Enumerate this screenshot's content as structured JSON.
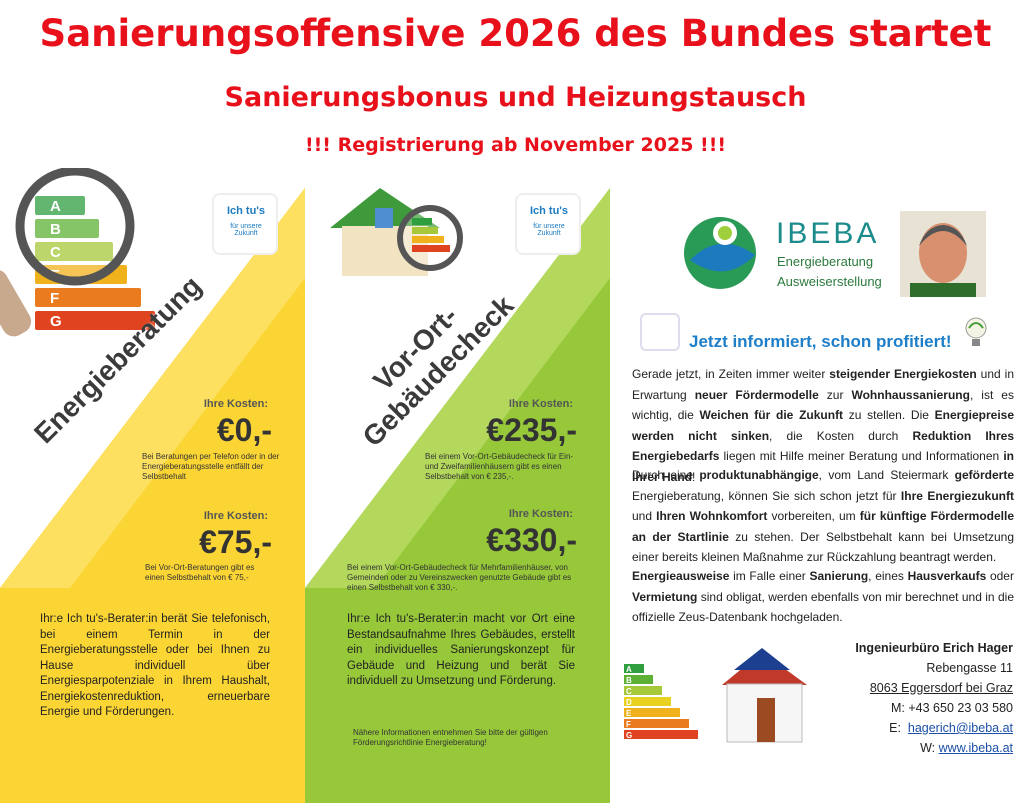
{
  "header": {
    "title": "Sanierungsoffensive 2026 des Bundes startet",
    "subtitle": "Sanierungsbonus und Heizungstausch",
    "notice": "!!! Registrierung ab November 2025 !!!"
  },
  "energy_scale": {
    "letters": [
      "A",
      "B",
      "C",
      "E",
      "F",
      "G"
    ],
    "colors": [
      "#2e9e3f",
      "#5cb135",
      "#a6c83a",
      "#f0b21c",
      "#ea7b1f",
      "#e0431f"
    ]
  },
  "panels": [
    {
      "badge": {
        "line1": "Ich tu's",
        "line2": "für unsere Zukunft"
      },
      "heading": [
        "Energieberatung"
      ],
      "costs": [
        {
          "label": "Ihre Kosten:",
          "price": "€0,-",
          "note": "Bei Beratungen per Telefon oder in der Energieberatungsstelle entfällt der Selbstbehalt"
        },
        {
          "label": "Ihre Kosten:",
          "price": "€75,-",
          "note": "Bei Vor-Ort-Beratungen gibt es einen Selbstbehalt von € 75,-"
        }
      ],
      "body": "Ihr:e Ich tu's-Berater:in berät Sie telefonisch, bei einem Termin in der Energieberatungsstelle oder bei Ihnen zu Hause individuell über Energiesparpotenziale in Ihrem Haushalt, Energiekostenreduktion, erneuerbare Energie und Förderungen."
    },
    {
      "badge": {
        "line1": "Ich tu's",
        "line2": "für unsere Zukunft"
      },
      "heading": [
        "Vor-Ort-",
        "Gebäudecheck"
      ],
      "costs": [
        {
          "label": "Ihre Kosten:",
          "price": "€235,-",
          "note": "Bei einem Vor-Ort-Gebäudecheck für Ein- und Zweifamilienhäusern gibt es einen Selbstbehalt von € 235,-."
        },
        {
          "label": "Ihre Kosten:",
          "price": "€330,-",
          "note": "Bei einem Vor-Ort-Gebäudecheck für Mehrfamilienhäuser, von Gemeinden oder zu Vereinszwecken genutzte Gebäude gibt es einen Selbstbehalt von € 330,-."
        }
      ],
      "body": "Ihr:e Ich tu's-Berater:in macht vor Ort eine Bestandsaufnahme Ihres Gebäudes, erstellt ein individuelles Sanierungskonzept für Gebäude und Heizung und berät Sie individuell zu Umsetzung und Förderung.",
      "footnote": "Nähere Informationen entnehmen Sie bitte der gültigen Förderungsrichtlinie Energieberatung!"
    }
  ],
  "company": {
    "name": "IBEBA",
    "tagline1": "Energieberatung",
    "tagline2": "Ausweiserstellung"
  },
  "headline": "Jetzt informiert, schon profitiert!",
  "paragraphs": [
    [
      {
        "text": "Gerade jetzt, in Zeiten immer weiter ",
        "bold": false
      },
      {
        "text": "steigender Energiekosten",
        "bold": true
      },
      {
        "text": " und in Erwartung ",
        "bold": false
      },
      {
        "text": "neuer Fördermodelle",
        "bold": true
      },
      {
        "text": " zur ",
        "bold": false
      },
      {
        "text": "Wohnhaussanierung",
        "bold": true
      },
      {
        "text": ", ist es wichtig, die ",
        "bold": false
      },
      {
        "text": "Weichen für die Zukunft",
        "bold": true
      },
      {
        "text": " zu stellen. Die ",
        "bold": false
      },
      {
        "text": "Energiepreise werden nicht sinken",
        "bold": true
      },
      {
        "text": ", die Kosten durch ",
        "bold": false
      },
      {
        "text": "Reduktion Ihres Energiebedarfs",
        "bold": true
      },
      {
        "text": " liegen mit Hilfe meiner Beratung und Informationen ",
        "bold": false
      },
      {
        "text": "in Ihrer Hand",
        "bold": true
      },
      {
        "text": "!",
        "bold": false
      }
    ],
    [
      {
        "text": "Durch eine ",
        "bold": false
      },
      {
        "text": "produktunabhängige",
        "bold": true
      },
      {
        "text": ", vom Land Steiermark ",
        "bold": false
      },
      {
        "text": "geförderte",
        "bold": true
      },
      {
        "text": " Energieberatung, können Sie sich schon jetzt für ",
        "bold": false
      },
      {
        "text": "Ihre Energiezukunft",
        "bold": true
      },
      {
        "text": " und ",
        "bold": false
      },
      {
        "text": "Ihren Wohnkomfort",
        "bold": true
      },
      {
        "text": " vorbereiten, um ",
        "bold": false
      },
      {
        "text": "für künftige Fördermodelle an der Startlinie",
        "bold": true
      },
      {
        "text": " zu stehen. Der Selbstbehalt kann bei Umsetzung einer bereits kleinen Maßnahme zur Rückzahlung beantragt werden.",
        "bold": false
      }
    ],
    [
      {
        "text": "Energieausweise",
        "bold": true
      },
      {
        "text": " im Falle einer ",
        "bold": false
      },
      {
        "text": "Sanierung",
        "bold": true
      },
      {
        "text": ", eines ",
        "bold": false
      },
      {
        "text": "Hausverkaufs",
        "bold": true
      },
      {
        "text": " oder ",
        "bold": false
      },
      {
        "text": "Vermietung",
        "bold": true
      },
      {
        "text": " sind obligat, werden ebenfalls von mir berechnet und in die offizielle Zeus-Datenbank hochgeladen.",
        "bold": false
      }
    ]
  ],
  "contact": {
    "name": "Ingenieurbüro Erich Hager",
    "street": "Rebengasse 11",
    "city": "8063 Eggersdorf bei Graz",
    "phone": "M: +43 650 23 03 580",
    "email_label": "E:",
    "email": "hagerich@ibeba.at",
    "web_label": "W:",
    "web": "www.ibeba.at"
  },
  "mini_scale": {
    "letters": [
      "A",
      "B",
      "C",
      "D",
      "E",
      "F",
      "G"
    ],
    "colors": [
      "#2e9e3f",
      "#5cb135",
      "#a6c83a",
      "#e8d21f",
      "#f0b21c",
      "#ea7b1f",
      "#e0431f"
    ]
  }
}
